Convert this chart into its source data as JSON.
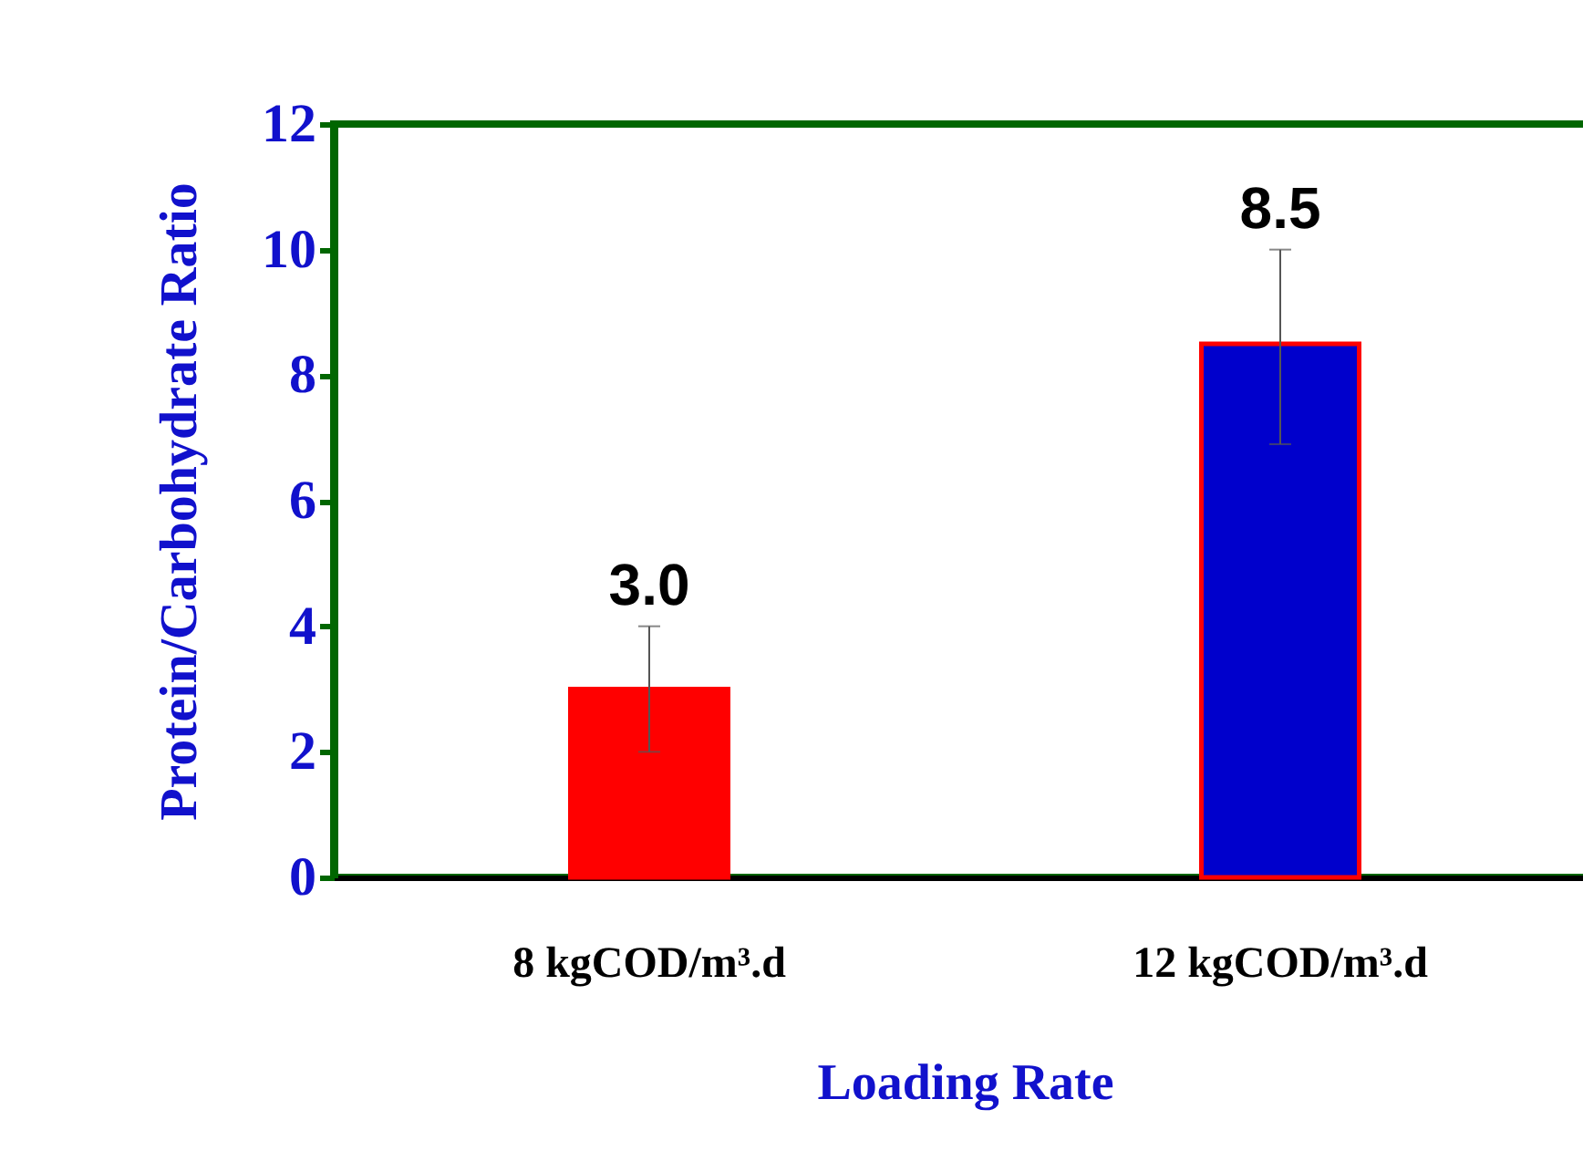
{
  "chart_data": {
    "type": "bar",
    "xlabel": "Loading Rate",
    "ylabel": "Protein/Carbohydrate Ratio",
    "categories": [
      "8 kgCOD/m³.d",
      "12 kgCOD/m³.d"
    ],
    "values": [
      3.0,
      8.5
    ],
    "colors": [
      "#ff0000",
      "#0000cc"
    ],
    "errors": [
      [
        2,
        4
      ],
      [
        6.9,
        10
      ]
    ],
    "value_labels": [
      "3.0",
      "8.5"
    ],
    "ylim": [
      0,
      12
    ],
    "yticks": [
      0,
      2,
      4,
      6,
      8,
      10,
      12
    ],
    "grid": false
  }
}
